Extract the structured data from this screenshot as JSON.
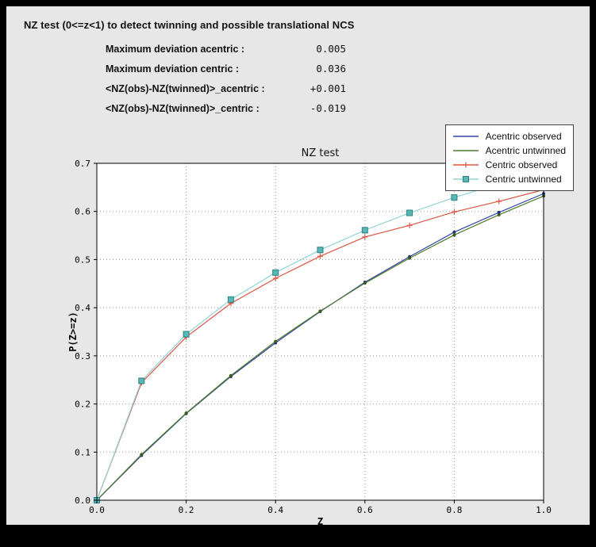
{
  "window": {
    "title": "NZ test (0<=z<1) to detect twinning and possible translational NCS"
  },
  "stats": {
    "rows": [
      {
        "label": "Maximum deviation acentric :",
        "value": "0.005"
      },
      {
        "label": "Maximum deviation centric :",
        "value": "0.036"
      },
      {
        "label": "<NZ(obs)-NZ(twinned)>_acentric :",
        "value": "+0.001"
      },
      {
        "label": "<NZ(obs)-NZ(twinned)>_centric :",
        "value": "-0.019"
      }
    ]
  },
  "chart_data": {
    "type": "line",
    "title": "NZ test",
    "xlabel": "Z",
    "ylabel": "P(Z>=z)",
    "xlim": [
      0.0,
      1.0
    ],
    "ylim": [
      0.0,
      0.7
    ],
    "x_ticks": [
      "0.0",
      "0.2",
      "0.4",
      "0.6",
      "0.8",
      "1.0"
    ],
    "y_ticks": [
      "0.0",
      "0.1",
      "0.2",
      "0.3",
      "0.4",
      "0.5",
      "0.6",
      "0.7"
    ],
    "x_gridlines": [
      0.2,
      0.4,
      0.6,
      0.8
    ],
    "y_gridlines": [
      0.1,
      0.2,
      0.3,
      0.4,
      0.5,
      0.6
    ],
    "grid": "dotted",
    "legend_position": "top-right",
    "background": "#ffffff",
    "panel_background": "#e7e7e7",
    "x": [
      0.0,
      0.1,
      0.2,
      0.3,
      0.4,
      0.5,
      0.6,
      0.7,
      0.8,
      0.9,
      1.0
    ],
    "series": [
      {
        "name": "Acentric observed",
        "color": "#3344aa",
        "marker": "circle",
        "marker_color": "#223377",
        "y": [
          0.0,
          0.093,
          0.18,
          0.257,
          0.327,
          0.392,
          0.453,
          0.506,
          0.557,
          0.598,
          0.637
        ]
      },
      {
        "name": "Acentric untwinned",
        "color": "#4e7c28",
        "marker": "circle",
        "marker_color": "#3a5c1e",
        "y": [
          0.0,
          0.095,
          0.181,
          0.259,
          0.33,
          0.393,
          0.451,
          0.503,
          0.551,
          0.593,
          0.632
        ]
      },
      {
        "name": "Centric observed",
        "color": "#dd5544",
        "marker": "plus",
        "y": [
          0.0,
          0.244,
          0.339,
          0.409,
          0.461,
          0.507,
          0.547,
          0.571,
          0.599,
          0.621,
          0.645
        ]
      },
      {
        "name": "Centric untwinned",
        "color": "#8fd6d6",
        "marker": "square",
        "marker_fill": "#58b8b8",
        "marker_edge": "#2e8080",
        "y": [
          0.0,
          0.248,
          0.345,
          0.417,
          0.473,
          0.52,
          0.561,
          0.597,
          0.629,
          0.657,
          0.683
        ]
      }
    ]
  }
}
